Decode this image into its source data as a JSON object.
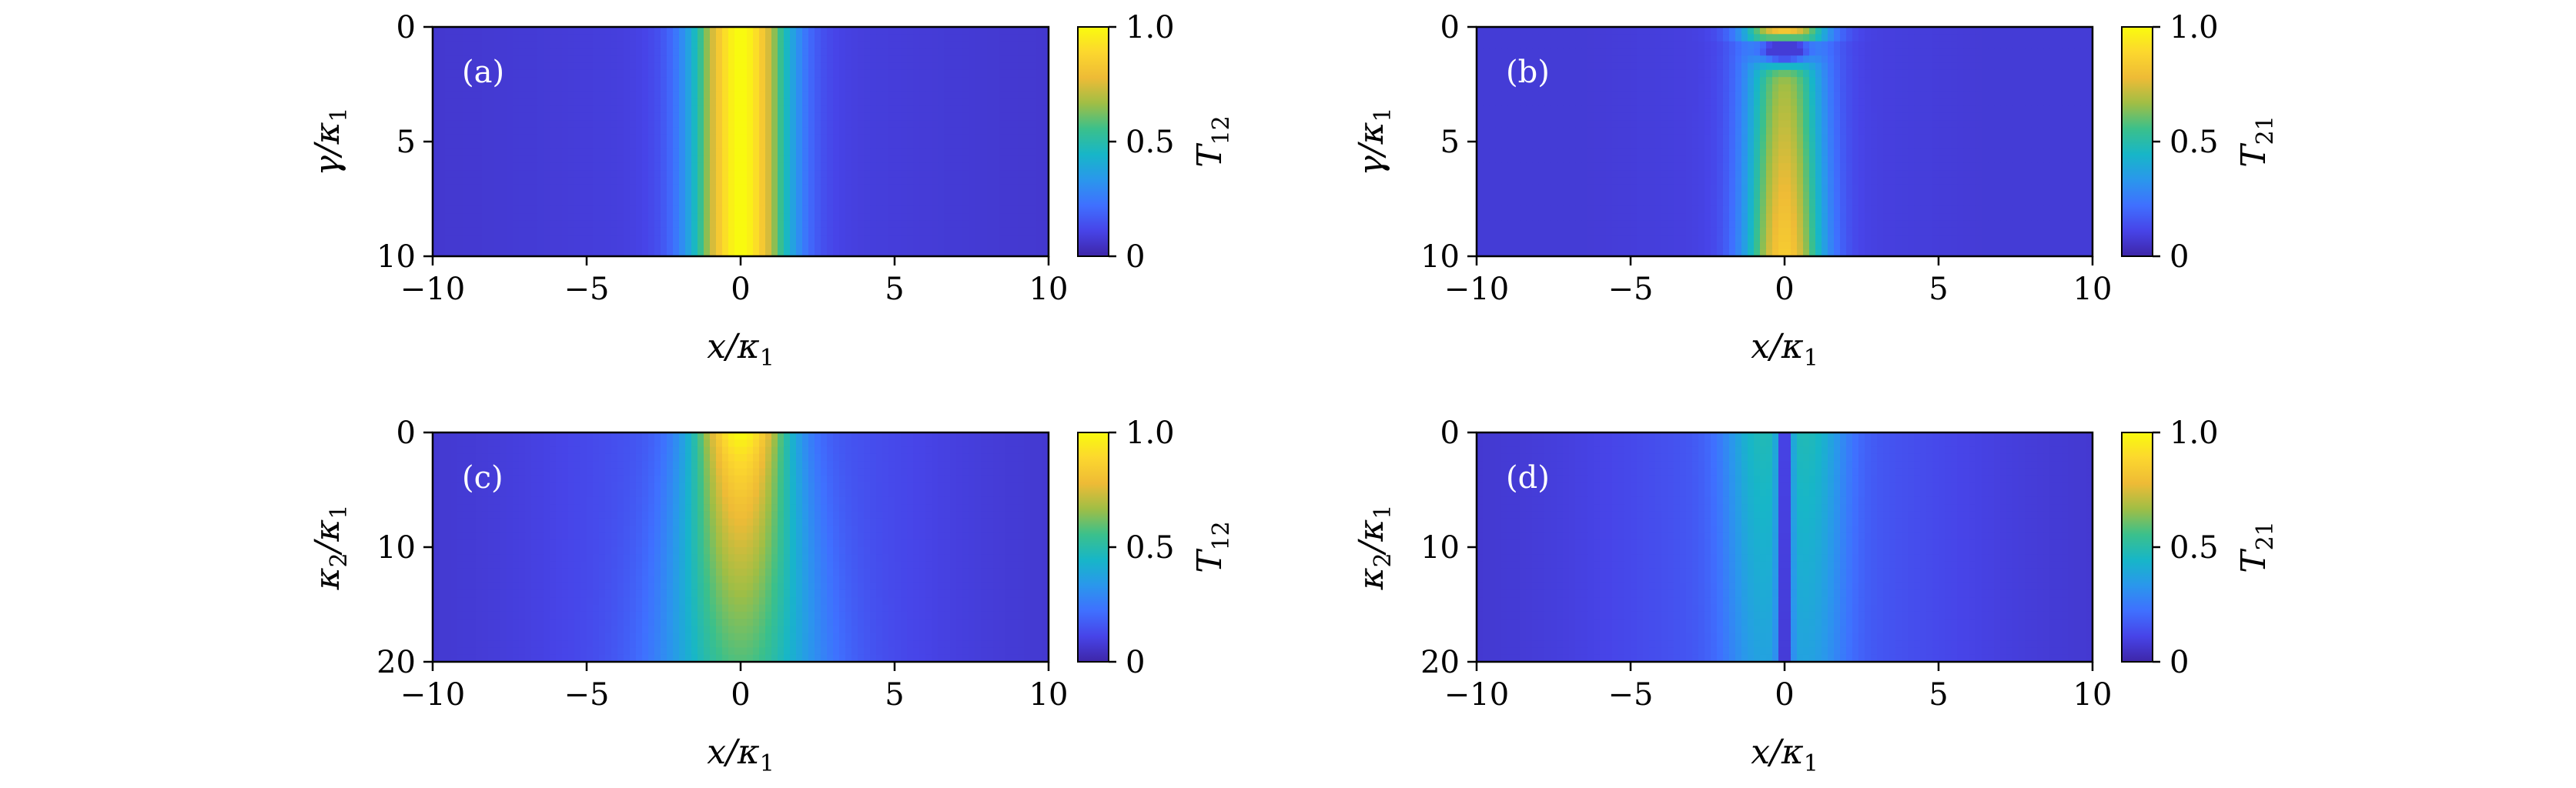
{
  "chart_data": [
    {
      "type": "heatmap",
      "panel_label": "(a)",
      "x": {
        "var": "x",
        "sub": "1",
        "range": [
          -10,
          10
        ],
        "ticks": [
          -10,
          -5,
          0,
          5,
          10
        ]
      },
      "y": {
        "var": "γ",
        "sub": "1",
        "range": [
          0,
          10
        ],
        "ticks": [
          0,
          5,
          10
        ]
      },
      "colorbar": {
        "label": "T",
        "sub": "12",
        "range": [
          0,
          1
        ],
        "ticks": [
          "0",
          "0.5",
          "1.0"
        ]
      },
      "colormap": [
        "#3e26a8",
        "#4744e8",
        "#3f70ff",
        "#2a97ec",
        "#17b6c8",
        "#3bc08b",
        "#a0be45",
        "#eebb36",
        "#fcd72e",
        "#f9fb0e"
      ],
      "field": "peak",
      "peak_value": 1.0,
      "peak_width": 1.1
    },
    {
      "type": "heatmap",
      "panel_label": "(b)",
      "x": {
        "var": "x",
        "sub": "1",
        "range": [
          -10,
          10
        ],
        "ticks": [
          -10,
          -5,
          0,
          5,
          10
        ]
      },
      "y": {
        "var": "γ",
        "sub": "1",
        "range": [
          0,
          10
        ],
        "ticks": [
          0,
          5,
          10
        ]
      },
      "colorbar": {
        "label": "T",
        "sub": "21",
        "range": [
          0,
          1
        ],
        "ticks": [
          "0",
          "0.5",
          "1.0"
        ]
      },
      "colormap": [
        "#3e26a8",
        "#4744e8",
        "#3f70ff",
        "#2a97ec",
        "#17b6c8",
        "#3bc08b",
        "#a0be45",
        "#eebb36",
        "#fcd72e",
        "#f9fb0e"
      ],
      "field": "peak_with_dip",
      "peak_value": 0.85,
      "peak_width": 0.9,
      "dip_center_y": 1.0
    },
    {
      "type": "heatmap",
      "panel_label": "(c)",
      "x": {
        "var": "x",
        "sub": "1",
        "range": [
          -10,
          10
        ],
        "ticks": [
          -10,
          -5,
          0,
          5,
          10
        ]
      },
      "y": {
        "var": "κ",
        "sub": "2",
        "sub2": "1",
        "range": [
          0,
          20
        ],
        "ticks": [
          0,
          10,
          20
        ]
      },
      "colorbar": {
        "label": "T",
        "sub": "12",
        "range": [
          0,
          1
        ],
        "ticks": [
          "0",
          "0.5",
          "1.0"
        ]
      },
      "colormap": [
        "#3e26a8",
        "#4744e8",
        "#3f70ff",
        "#2a97ec",
        "#17b6c8",
        "#3bc08b",
        "#a0be45",
        "#eebb36",
        "#fcd72e",
        "#f9fb0e"
      ],
      "field": "decaying_peak",
      "peak_value_top": 0.95,
      "peak_value_bottom": 0.5
    },
    {
      "type": "heatmap",
      "panel_label": "(d)",
      "x": {
        "var": "x",
        "sub": "1",
        "range": [
          -10,
          10
        ],
        "ticks": [
          -10,
          -5,
          0,
          5,
          10
        ]
      },
      "y": {
        "var": "κ",
        "sub": "2",
        "sub2": "1",
        "range": [
          0,
          20
        ],
        "ticks": [
          0,
          10,
          20
        ]
      },
      "colorbar": {
        "label": "T",
        "sub": "21",
        "range": [
          0,
          1
        ],
        "ticks": [
          "0",
          "0.5",
          "1.0"
        ]
      },
      "colormap": [
        "#3e26a8",
        "#4744e8",
        "#3f70ff",
        "#2a97ec",
        "#17b6c8",
        "#3bc08b",
        "#a0be45",
        "#eebb36",
        "#fcd72e",
        "#f9fb0e"
      ],
      "field": "double_lobe",
      "peak_value": 0.45,
      "lobe_offset": 0.9,
      "center_value": 0.02
    }
  ]
}
